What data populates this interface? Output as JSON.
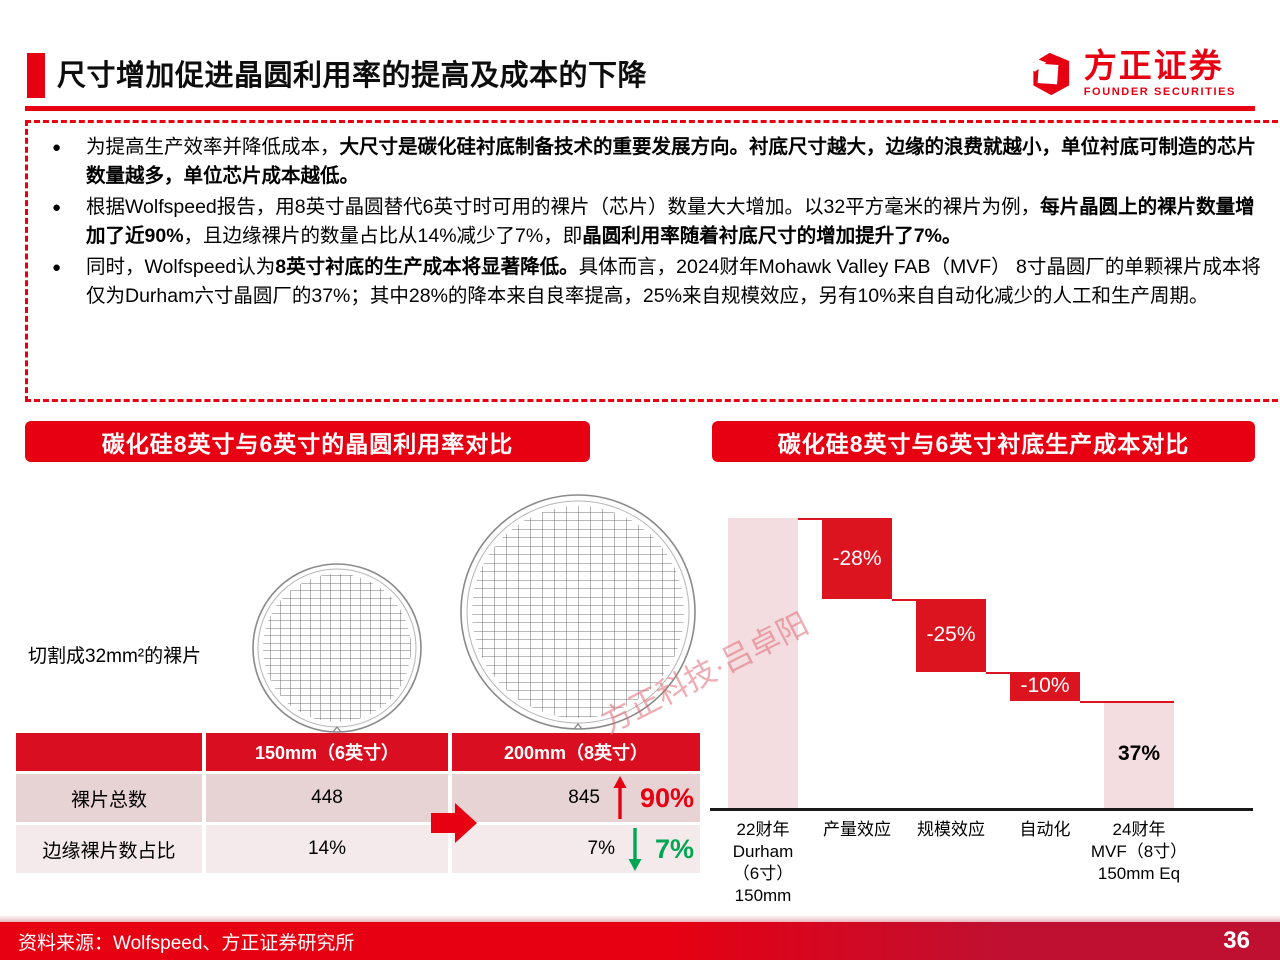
{
  "header": {
    "title": "尺寸增加促进晶圆利用率的提高及成本的下降",
    "logo_cn": "方正证券",
    "logo_en": "FOUNDER SECURITIES"
  },
  "bullets": [
    {
      "segments": [
        {
          "t": "为提高生产效率并降低成本，",
          "b": false
        },
        {
          "t": "大尺寸是碳化硅衬底制备技术的重要发展方向。衬底尺寸越大，边缘的浪费就越小，单位衬底可制造的芯片数量越多，单位芯片成本越低。",
          "b": true
        }
      ]
    },
    {
      "segments": [
        {
          "t": "根据Wolfspeed报告，用8英寸晶圆替代6英寸时可用的裸片（芯片）数量大大增加。以32平方毫米的裸片为例，",
          "b": false
        },
        {
          "t": "每片晶圆上的裸片数量增加了近90%",
          "b": true
        },
        {
          "t": "，且边缘裸片的数量占比从14%减少了7%，即",
          "b": false
        },
        {
          "t": "晶圆利用率随着衬底尺寸的增加提升了7%。",
          "b": true
        }
      ]
    },
    {
      "segments": [
        {
          "t": "同时，Wolfspeed认为",
          "b": false
        },
        {
          "t": "8英寸衬底的生产成本将显著降低。",
          "b": true
        },
        {
          "t": "具体而言，2024财年Mohawk Valley FAB（MVF） 8寸晶圆厂的单颗裸片成本将仅为Durham六寸晶圆厂的37%；其中28%的降本来自良率提高，25%来自规模效应，另有10%来自自动化减少的人工和生产周期。",
          "b": false
        }
      ]
    }
  ],
  "left_panel": {
    "title": "碳化硅8英寸与6英寸的晶圆利用率对比",
    "caption": "切割成32mm²的裸片",
    "table": {
      "headers": [
        "",
        "150mm（6英寸）",
        "200mm（8英寸）"
      ],
      "rows": [
        {
          "label": "裸片总数",
          "v6": "448",
          "v8": "845",
          "delta": "90%",
          "dir": "up"
        },
        {
          "label": "边缘裸片数占比",
          "v6": "14%",
          "v8": "7%",
          "delta": "7%",
          "dir": "down"
        }
      ]
    }
  },
  "right_panel": {
    "title": "碳化硅8英寸与6英寸衬底生产成本对比",
    "chart_data": {
      "type": "bar",
      "subtype": "waterfall",
      "title": "碳化硅8英寸与6英寸衬底生产成本对比",
      "categories": [
        "22财年\nDurham\n（6寸）\n150mm",
        "产量效应",
        "规模效应",
        "自动化",
        "24财年\nMVF（8寸）\n150mm Eq"
      ],
      "bars": [
        {
          "label": "",
          "from": 0,
          "to": 100,
          "color": "pink"
        },
        {
          "label": "-28%",
          "from": 100,
          "to": 72,
          "color": "red"
        },
        {
          "label": "-25%",
          "from": 72,
          "to": 47,
          "color": "red"
        },
        {
          "label": "-10%",
          "from": 47,
          "to": 37,
          "color": "red"
        },
        {
          "label": "37%",
          "from": 0,
          "to": 37,
          "color": "pink"
        }
      ],
      "ylim": [
        0,
        100
      ],
      "grid": false,
      "legend": false
    }
  },
  "watermark": "方正科技·吕卓阳",
  "footer": {
    "source": "资料来源：Wolfspeed、方正证券研究所",
    "page": "36"
  },
  "colors": {
    "brand_red": "#e60012",
    "bar_red": "#db1420",
    "bar_pink": "#f3dde0",
    "table_header_red": "#d90e20",
    "row1_pink": "#e7d2d4",
    "row2_pink": "#f5eaeb",
    "delta_green": "#00a651"
  }
}
